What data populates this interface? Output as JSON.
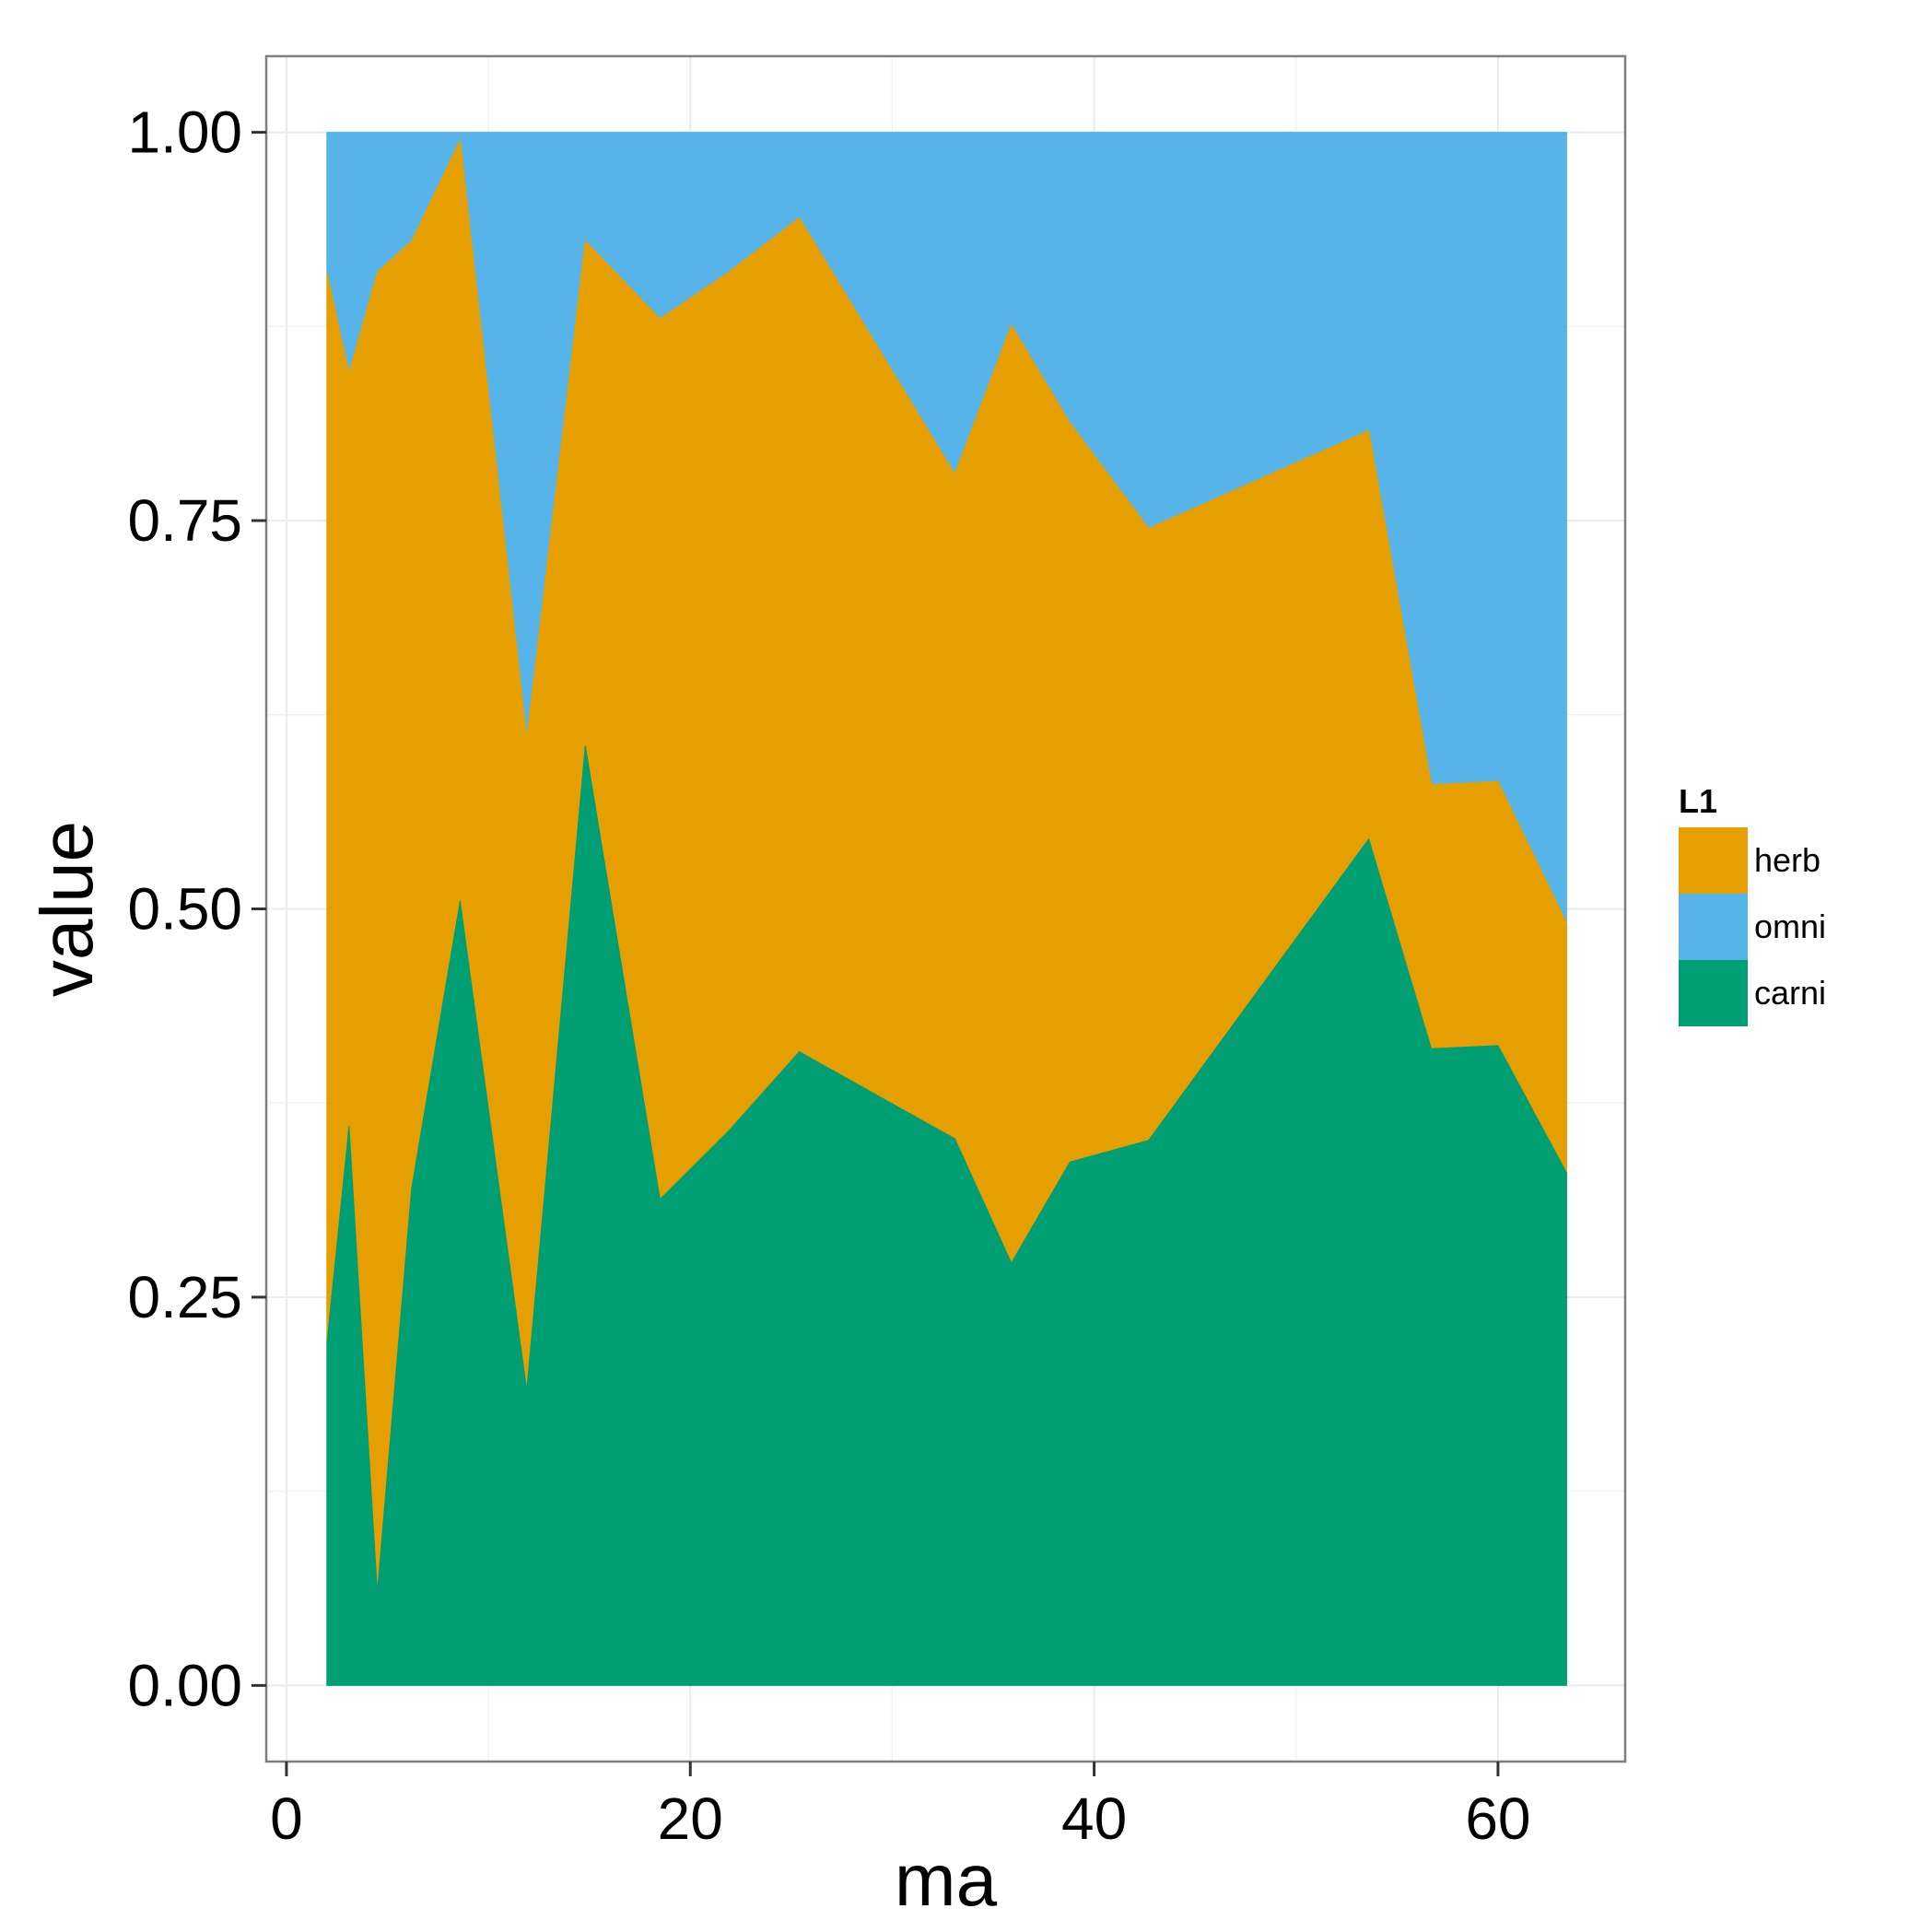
{
  "chart_data": {
    "type": "area",
    "stacked": true,
    "xlabel": "ma",
    "ylabel": "value",
    "xlim": [
      -1,
      66.3
    ],
    "ylim": [
      -0.049,
      1.049
    ],
    "x_ticks": [
      0,
      20,
      40,
      60
    ],
    "x_tick_labels": [
      "0",
      "20",
      "40",
      "60"
    ],
    "y_ticks": [
      0,
      0.25,
      0.5,
      0.75,
      1
    ],
    "y_tick_labels": [
      "0.00",
      "0.25",
      "0.50",
      "0.75",
      "1.00"
    ],
    "grid": true,
    "legend": {
      "title": "L1",
      "placement": "right",
      "entries": [
        {
          "name": "herb",
          "color": "#E69F00"
        },
        {
          "name": "omni",
          "color": "#56B4E9"
        },
        {
          "name": "carni",
          "color": "#009E73"
        }
      ]
    },
    "x": [
      2.0,
      3.1,
      4.5,
      6.2,
      8.6,
      11.9,
      14.8,
      18.5,
      21.9,
      25.4,
      33.1,
      35.9,
      38.8,
      42.7,
      53.6,
      56.7,
      60.0,
      63.4
    ],
    "series": [
      {
        "name": "carni",
        "color": "#009E73",
        "values": [
          0.22,
          0.36,
          0.06,
          0.32,
          0.505,
          0.19,
          0.605,
          0.313,
          0.357,
          0.408,
          0.352,
          0.272,
          0.337,
          0.351,
          0.545,
          0.41,
          0.412,
          0.33
        ]
      },
      {
        "name": "herb",
        "color": "#E69F00",
        "values": [
          0.69,
          0.485,
          0.85,
          0.61,
          0.49,
          0.42,
          0.325,
          0.567,
          0.553,
          0.537,
          0.428,
          0.604,
          0.476,
          0.394,
          0.263,
          0.17,
          0.17,
          0.161
        ]
      },
      {
        "name": "omni",
        "color": "#56B4E9",
        "values": [
          0.09,
          0.155,
          0.09,
          0.07,
          0.005,
          0.39,
          0.07,
          0.12,
          0.09,
          0.055,
          0.22,
          0.124,
          0.187,
          0.255,
          0.192,
          0.42,
          0.418,
          0.509
        ]
      }
    ]
  }
}
